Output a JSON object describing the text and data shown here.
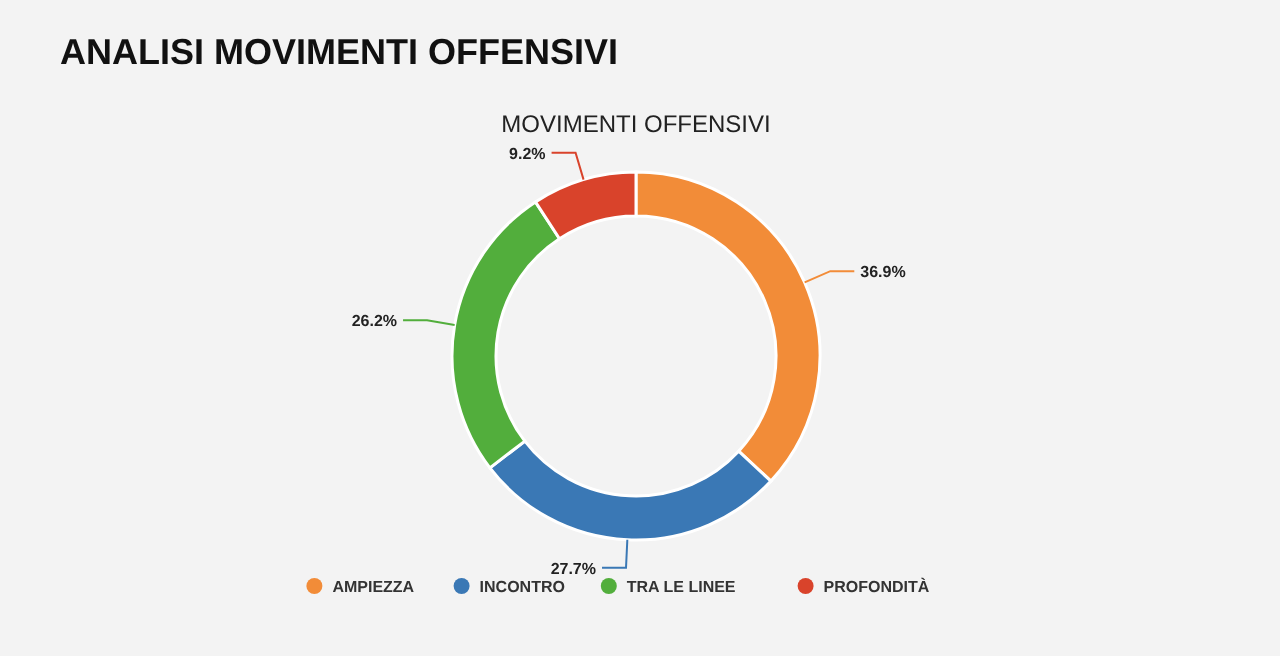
{
  "chart_data": {
    "type": "donut",
    "title": "ANALISI MOVIMENTI OFFENSIVI",
    "subtitle": "MOVIMENTI OFFENSIVI",
    "categories": [
      "AMPIEZZA",
      "INCONTRO",
      "TRA LE LINEE",
      "PROFONDITÀ"
    ],
    "values": [
      36.9,
      27.7,
      26.2,
      9.2
    ],
    "value_labels": [
      "36.9%",
      "27.7%",
      "26.2%",
      "9.2%"
    ],
    "colors": [
      "#f28c38",
      "#3a78b5",
      "#52ae3c",
      "#d9432b"
    ],
    "legend": "bottom"
  }
}
